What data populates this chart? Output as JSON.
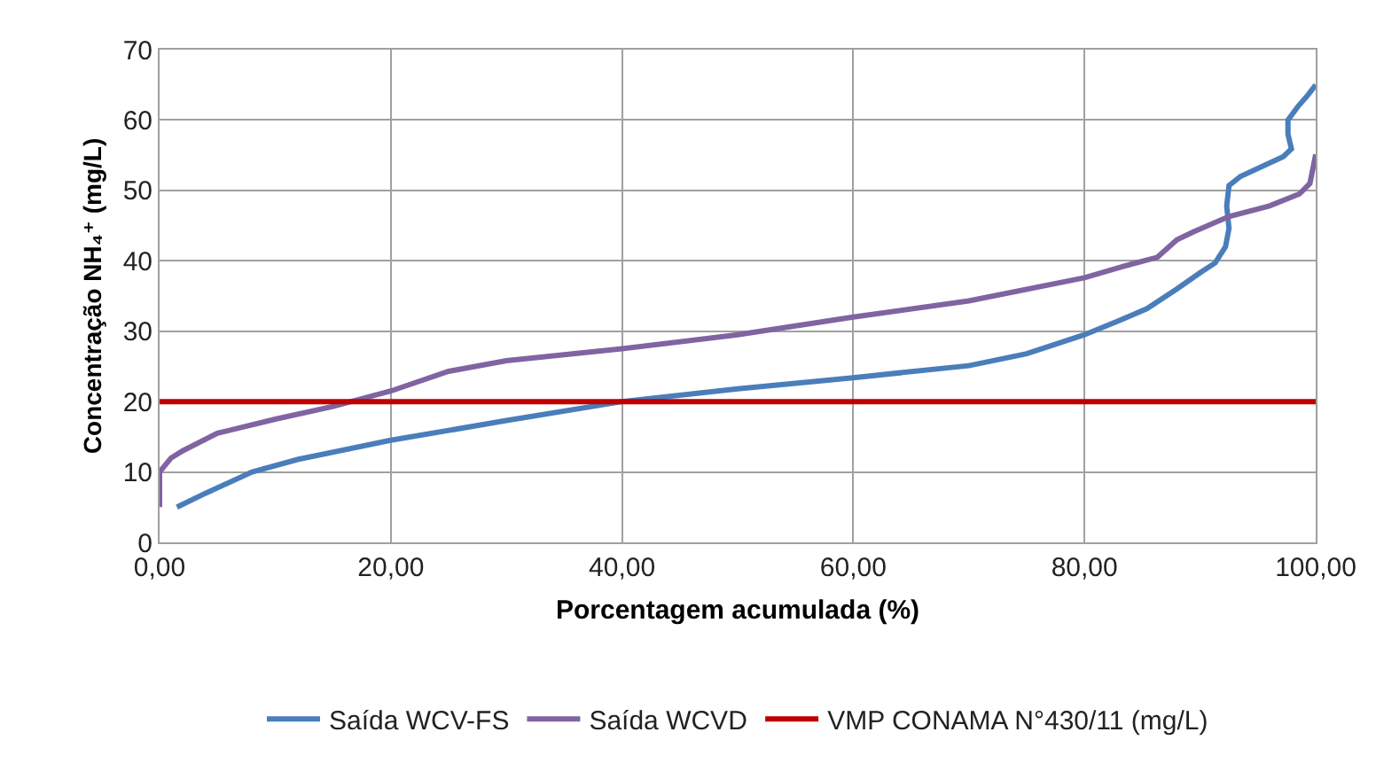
{
  "chart_data": {
    "type": "line",
    "xlabel": "Porcentagem acumulada (%)",
    "ylabel": "Concentração NH₄⁺ (mg/L)",
    "xlim": [
      0,
      100
    ],
    "xticks": [
      {
        "value": 0,
        "label": "0,00"
      },
      {
        "value": 20,
        "label": "20,00"
      },
      {
        "value": 40,
        "label": "40,00"
      },
      {
        "value": 60,
        "label": "60,00"
      },
      {
        "value": 80,
        "label": "80,00"
      },
      {
        "value": 100,
        "label": "100,00"
      }
    ],
    "ylim": [
      0,
      70
    ],
    "yticks": [
      0,
      10,
      20,
      30,
      40,
      50,
      60,
      70
    ],
    "grid": true,
    "legend": "bottom",
    "marker": "none",
    "line_style": "solid",
    "series": [
      {
        "name": "Saída WCV-FS",
        "color": "#4a7ebb",
        "x": [
          1.5,
          4,
          8,
          12,
          20,
          30,
          40,
          50,
          60,
          70,
          75,
          80,
          83,
          85.4,
          88,
          90,
          91.3,
          92.2,
          92.5,
          92.3,
          92.5,
          93.5,
          95.5,
          97.2,
          97.9,
          97.6,
          97.6,
          98.5,
          99.3,
          100
        ],
        "values": [
          5,
          7,
          10,
          11.8,
          14.5,
          17.3,
          20,
          21.8,
          23.4,
          25.1,
          26.8,
          29.5,
          31.5,
          33.2,
          36,
          38.3,
          39.7,
          42,
          44.6,
          47.8,
          50.7,
          52,
          53.5,
          54.8,
          55.9,
          58,
          60,
          62,
          63.5,
          65
        ]
      },
      {
        "name": "Saída WCVD",
        "color": "#8064a2",
        "x": [
          0,
          0,
          1,
          2,
          5,
          10,
          15,
          20,
          25,
          30,
          40,
          50,
          60,
          70,
          80,
          84,
          86.3,
          88,
          89.4,
          92.5,
          96,
          98.6,
          99.5,
          100
        ],
        "values": [
          5,
          10,
          12,
          13,
          15.5,
          17.5,
          19.3,
          21.5,
          24.3,
          25.8,
          27.5,
          29.5,
          32,
          34.3,
          37.6,
          39.5,
          40.5,
          43,
          44.1,
          46.3,
          47.8,
          49.5,
          51,
          55.1
        ]
      },
      {
        "name": "VMP CONAMA N°430/11 (mg/L)",
        "color": "#c00000",
        "x": [
          0,
          100
        ],
        "values": [
          20,
          20
        ]
      }
    ]
  }
}
